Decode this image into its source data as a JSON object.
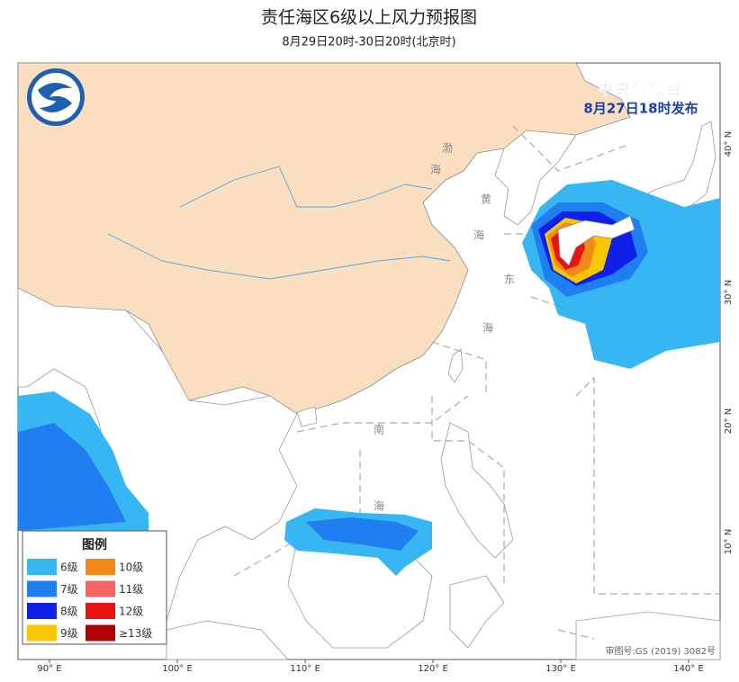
{
  "header": {
    "title": "责任海区6级以上风力预报图",
    "subtitle": "8月29日20时-30日20时(北京时)",
    "issuer": "中央气象台",
    "issue_time": "8月27日18时发布"
  },
  "sea_labels": [
    [
      "渤",
      "海"
    ],
    [
      "黄",
      "海"
    ],
    [
      "东",
      "海"
    ],
    [
      "南",
      "海"
    ]
  ],
  "legend": {
    "title": "图例",
    "items": [
      {
        "label": "6级",
        "color": "#38b6f1"
      },
      {
        "label": "10级",
        "color": "#f28a1a"
      },
      {
        "label": "7级",
        "color": "#1f7ff0"
      },
      {
        "label": "11级",
        "color": "#f56464"
      },
      {
        "label": "8级",
        "color": "#1020e8"
      },
      {
        "label": "12级",
        "color": "#e81414"
      },
      {
        "label": "9级",
        "color": "#f7c600"
      },
      {
        "label": "≥13级",
        "color": "#b00000"
      }
    ]
  },
  "longitude_labels": [
    "90° E",
    "100° E",
    "110° E",
    "120° E",
    "130° E",
    "140° E"
  ],
  "latitude_labels": [
    "40° N",
    "30° N",
    "20° N",
    "10° N"
  ],
  "footer": {
    "approval": "审图号:GS (2019) 3082号"
  }
}
